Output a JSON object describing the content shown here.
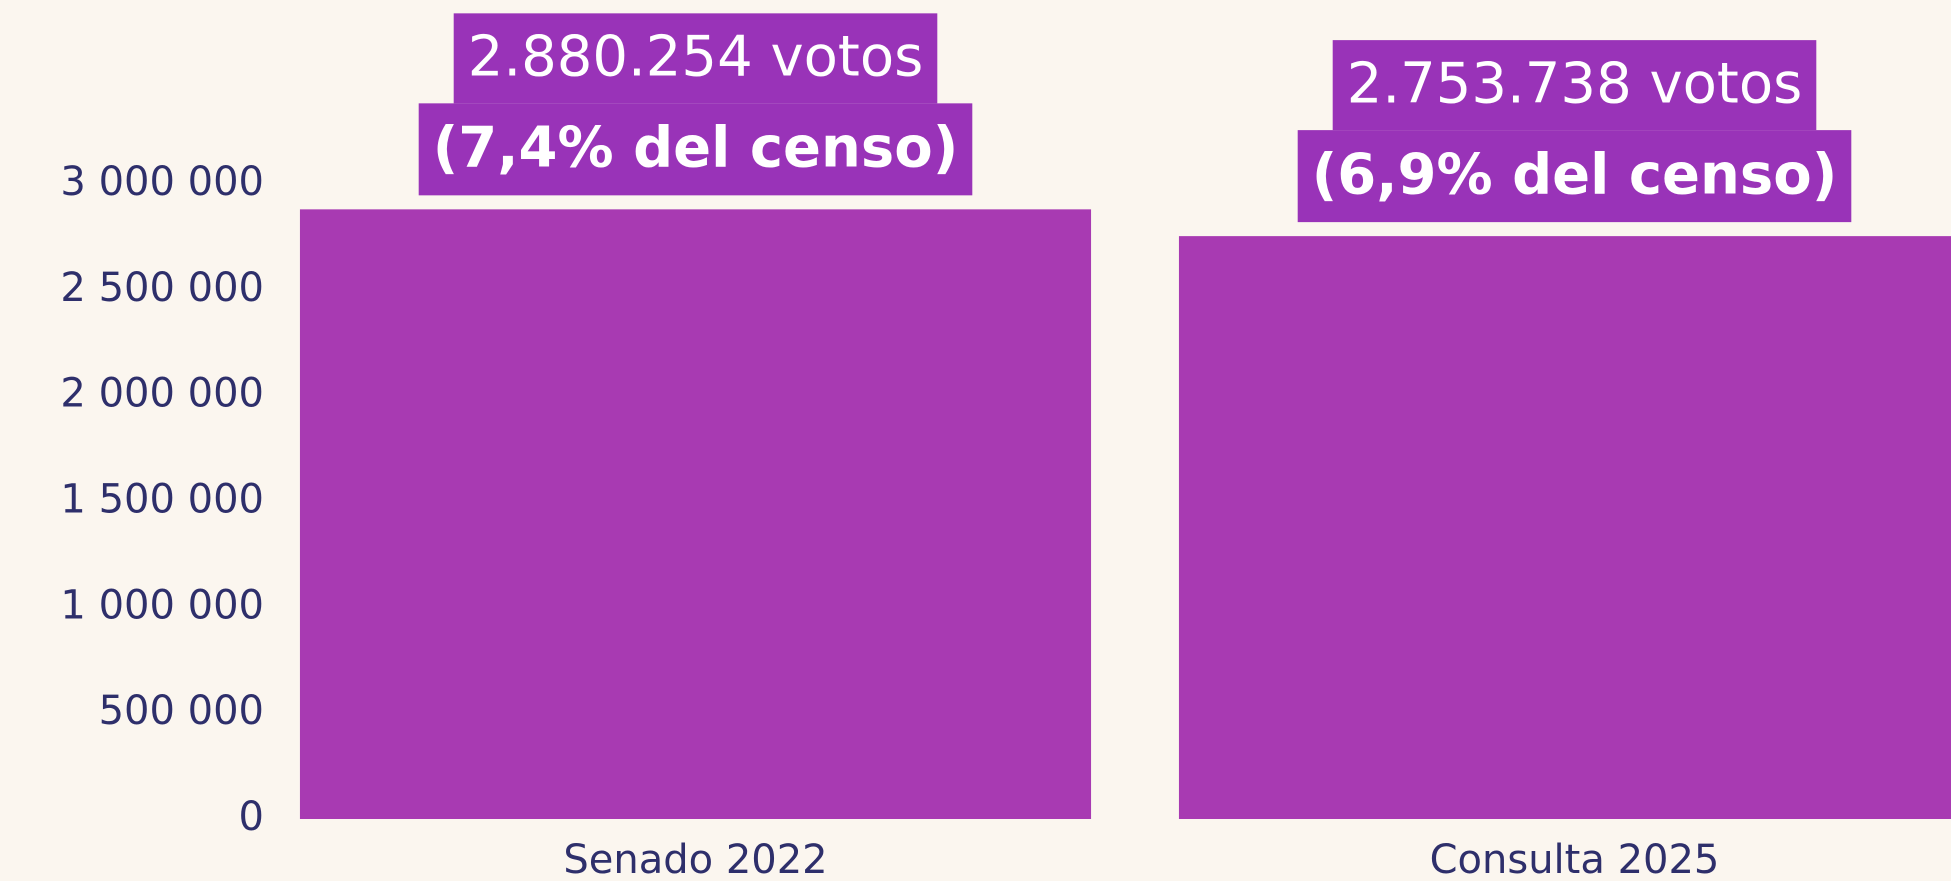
{
  "chart_data": {
    "type": "bar",
    "categories": [
      "Senado 2022",
      "Consulta 2025"
    ],
    "values": [
      2880254,
      2753738
    ],
    "value_labels": [
      "2.880.254 votos",
      "2.753.738 votos"
    ],
    "annotations": [
      "(7,4% del censo)",
      "(6,9% del censo)"
    ],
    "color": "#a83ab2",
    "label_color": "#9933b8",
    "ylim": [
      0,
      3000000
    ],
    "yticks": [
      0,
      {
        "value": 500000,
        "label": "500 000"
      },
      {
        "value": 1000000,
        "label": "1 000 000"
      },
      {
        "value": 1500000,
        "label": "1 500 000"
      },
      {
        "value": 2000000,
        "label": "2 000 000"
      },
      {
        "value": 2500000,
        "label": "2 500 000"
      },
      {
        "value": 3000000,
        "label": "3 000 000"
      }
    ],
    "grid": false
  }
}
